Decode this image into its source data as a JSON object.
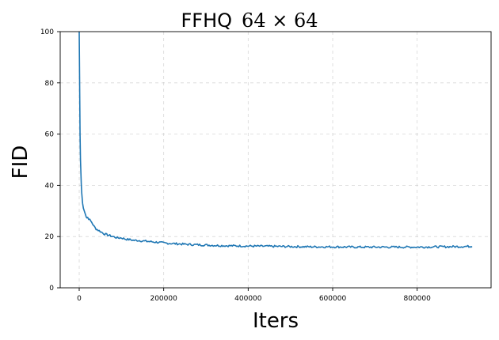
{
  "chart_data": {
    "type": "line",
    "title": "FFHQ",
    "title_math": "64 × 64",
    "xlabel": "Iters",
    "ylabel": "FID",
    "xlim": [
      -45000,
      975000
    ],
    "ylim": [
      0,
      100
    ],
    "xticks": [
      0,
      200000,
      400000,
      600000,
      800000
    ],
    "yticks": [
      0,
      20,
      40,
      60,
      80,
      100
    ],
    "grid": true,
    "legend": "none",
    "color": "#1f77b4",
    "series": [
      {
        "x": [
          0,
          1000,
          2000,
          3000,
          4000,
          5000,
          6000,
          8000,
          10000,
          12000,
          15000,
          18000,
          20000,
          25000,
          30000,
          35000,
          40000,
          45000,
          50000,
          55000,
          60000,
          70000,
          80000,
          90000,
          100000,
          110000,
          120000,
          130000,
          140000,
          150000,
          170000,
          190000,
          200000,
          220000,
          250000,
          280000,
          300000,
          330000,
          360000,
          400000,
          450000,
          500000,
          550000,
          600000,
          650000,
          700000,
          750000,
          800000,
          850000,
          900000,
          930000
        ],
        "y": [
          100,
          80,
          60,
          50,
          45,
          40,
          37,
          33,
          31,
          30,
          28.5,
          27.5,
          27.5,
          26.5,
          25.5,
          24,
          23,
          22.5,
          22,
          21.5,
          21,
          20.5,
          20,
          19.5,
          19.5,
          19,
          18.8,
          18.5,
          18.5,
          18.3,
          18,
          17.7,
          17.5,
          17.3,
          17.0,
          16.8,
          16.7,
          16.5,
          16.4,
          16.3,
          16.2,
          16.1,
          16.0,
          16.0,
          15.9,
          15.9,
          15.9,
          15.9,
          16.0,
          16.1,
          16.2
        ]
      }
    ]
  }
}
